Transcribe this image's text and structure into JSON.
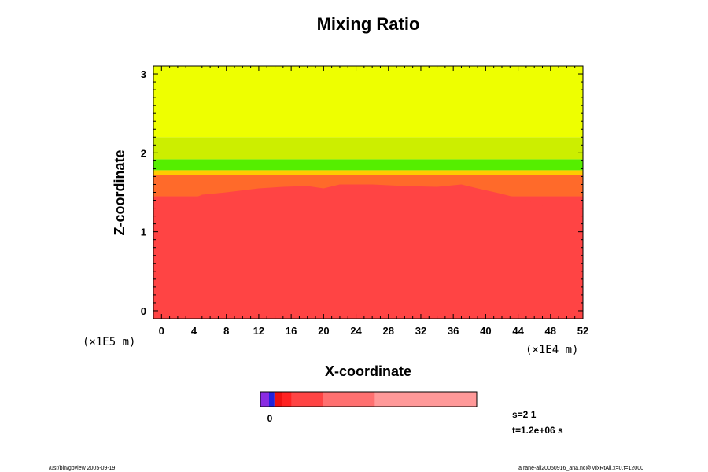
{
  "chart_data": {
    "type": "heatmap",
    "title": "Mixing Ratio",
    "xlabel": "X-coordinate",
    "ylabel": "Z-coordinate",
    "x_unit": "(×1E4 m)",
    "y_unit": "(×1E5 m)",
    "xlim": [
      -1,
      52
    ],
    "ylim": [
      -0.1,
      3.1
    ],
    "x_ticks": [
      "0",
      "4",
      "8",
      "12",
      "16",
      "20",
      "24",
      "28",
      "32",
      "36",
      "40",
      "44",
      "48",
      "52"
    ],
    "y_ticks": [
      "0",
      "1",
      "2",
      "3"
    ],
    "layers": [
      {
        "z_from": -0.1,
        "z_to": 1.45,
        "color": "#ff4444"
      },
      {
        "z_from": 1.45,
        "z_to": 1.72,
        "color": "#ff6a2a"
      },
      {
        "z_from": 1.72,
        "z_to": 1.78,
        "color": "#ffcc00"
      },
      {
        "z_from": 1.78,
        "z_to": 1.92,
        "color": "#55ee00"
      },
      {
        "z_from": 1.92,
        "z_to": 2.2,
        "color": "#ccee00"
      },
      {
        "z_from": 2.2,
        "z_to": 3.1,
        "color": "#eeff00"
      }
    ],
    "interface_color": "#ff4444",
    "interface_z": [
      [
        -1,
        1.42
      ],
      [
        1,
        1.4
      ],
      [
        3,
        1.38
      ],
      [
        5,
        1.47
      ],
      [
        8,
        1.5
      ],
      [
        12,
        1.55
      ],
      [
        15,
        1.57
      ],
      [
        18,
        1.58
      ],
      [
        20,
        1.55
      ],
      [
        22,
        1.6
      ],
      [
        26,
        1.6
      ],
      [
        30,
        1.58
      ],
      [
        34,
        1.57
      ],
      [
        37,
        1.6
      ],
      [
        39,
        1.55
      ],
      [
        42,
        1.48
      ],
      [
        45,
        1.4
      ],
      [
        47,
        1.33
      ],
      [
        49,
        1.36
      ],
      [
        52,
        1.44
      ]
    ],
    "colorbar": {
      "label": "0",
      "segments": [
        {
          "from": 0.0,
          "to": 0.04,
          "color": "#8a2be2"
        },
        {
          "from": 0.04,
          "to": 0.065,
          "color": "#2222dd"
        },
        {
          "from": 0.065,
          "to": 0.1,
          "color": "#ee1111"
        },
        {
          "from": 0.1,
          "to": 0.145,
          "color": "#ff2222"
        },
        {
          "from": 0.145,
          "to": 0.29,
          "color": "#ff4444"
        },
        {
          "from": 0.29,
          "to": 0.53,
          "color": "#ff7070"
        },
        {
          "from": 0.53,
          "to": 1.0,
          "color": "#ff9999"
        }
      ]
    }
  },
  "info": {
    "s_label": "s=2 1",
    "t_label": "t=1.2e+06 s"
  },
  "footer": {
    "left": "/usr/bin/gpview 2005-09-19",
    "right": "a rane-all20050916_ana.nc@MixRtAll,x=0,t=12000"
  }
}
